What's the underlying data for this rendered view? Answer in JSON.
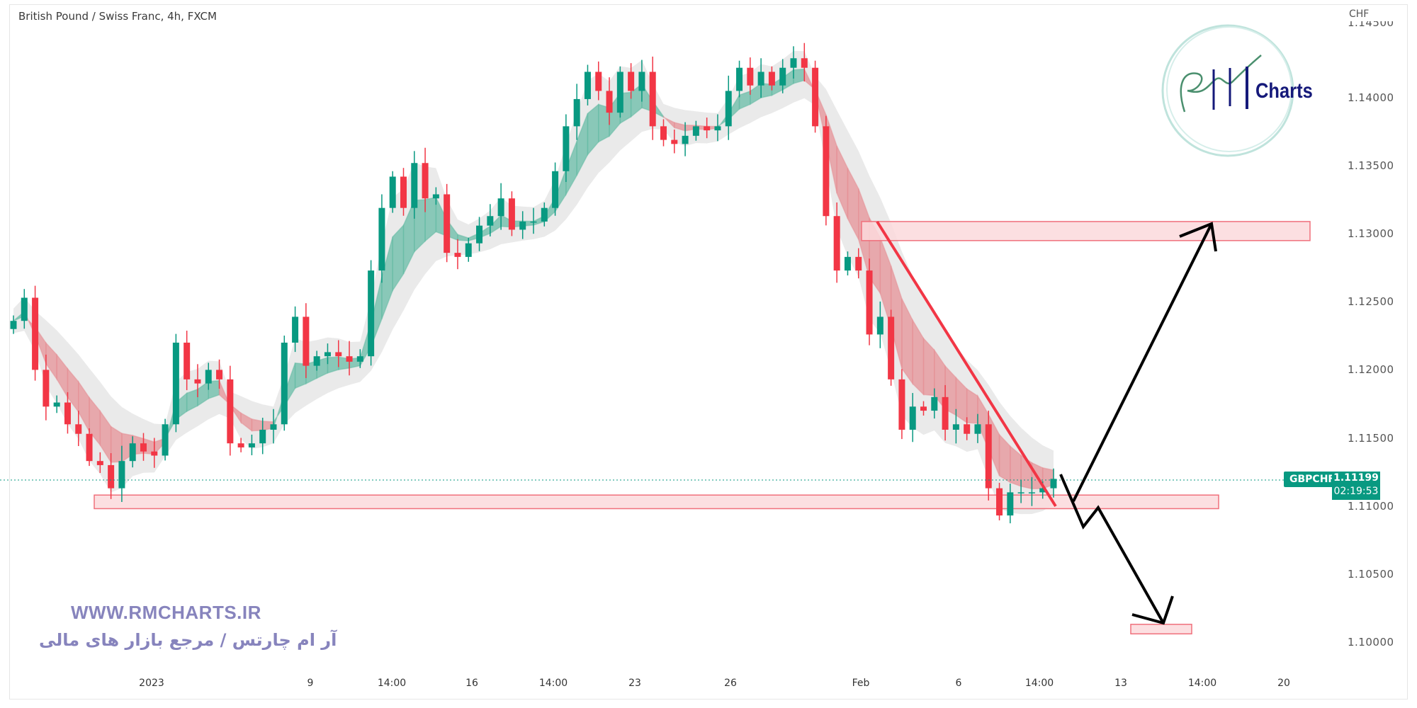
{
  "header": {
    "title": "British Pound / Swiss Franc, 4h, FXCM"
  },
  "price_axis": {
    "unit": "CHF",
    "ticks": [
      "1.14500",
      "1.14000",
      "1.13500",
      "1.13000",
      "1.12500",
      "1.12000",
      "1.11500",
      "1.11000",
      "1.10500",
      "1.10000"
    ]
  },
  "time_axis": {
    "ticks": [
      "2023",
      "9",
      "14:00",
      "16",
      "14:00",
      "23",
      "26",
      "Feb",
      "6",
      "14:00",
      "13",
      "14:00",
      "20"
    ]
  },
  "last_price": {
    "symbol": "GBPCHF",
    "value": "1.11199",
    "countdown": "02:19:53"
  },
  "watermark": {
    "url": "WWW.RMCHARTS.IR",
    "persian": "آر ام چارتس / مرجع بازار های مالی",
    "logo_text": "Charts"
  },
  "colors": {
    "up": "#089981",
    "down": "#f23645",
    "zone_fill": "#fcd9dc",
    "zone_border": "#f0707c",
    "trendline": "#f23645",
    "arrow": "#000000",
    "ribbon_up": "#5fb9a2",
    "ribbon_down": "#e58b92",
    "band": "#d9d9d9"
  },
  "chart_data": {
    "type": "candlestick",
    "symbol": "GBPCHF",
    "timeframe": "4h",
    "ylim": [
      1.0975,
      1.145
    ],
    "closes": [
      1.1236,
      1.1253,
      1.12,
      1.1173,
      1.1176,
      1.116,
      1.1153,
      1.1133,
      1.113,
      1.1113,
      1.1133,
      1.1146,
      1.114,
      1.1137,
      1.116,
      1.122,
      1.1193,
      1.119,
      1.12,
      1.1193,
      1.1146,
      1.1143,
      1.1146,
      1.1156,
      1.116,
      1.122,
      1.1239,
      1.1203,
      1.121,
      1.1213,
      1.121,
      1.1206,
      1.121,
      1.1273,
      1.1319,
      1.1342,
      1.1319,
      1.1352,
      1.1326,
      1.1329,
      1.1286,
      1.1283,
      1.1293,
      1.1306,
      1.1313,
      1.1326,
      1.1303,
      1.1309,
      1.1309,
      1.1319,
      1.1346,
      1.1379,
      1.1399,
      1.1419,
      1.1405,
      1.1389,
      1.1419,
      1.1405,
      1.1419,
      1.1379,
      1.1369,
      1.1366,
      1.1372,
      1.1379,
      1.1376,
      1.1379,
      1.1405,
      1.1422,
      1.1409,
      1.1419,
      1.1409,
      1.1422,
      1.1429,
      1.1422,
      1.1379,
      1.1313,
      1.1273,
      1.1283,
      1.1273,
      1.1226,
      1.1239,
      1.1193,
      1.1156,
      1.1173,
      1.117,
      1.118,
      1.1156,
      1.116,
      1.1153,
      1.116,
      1.1113,
      1.1093,
      1.111,
      1.111,
      1.111,
      1.1113,
      1.11199
    ],
    "zones": [
      {
        "price_top": 1.1108,
        "price_bottom": 1.1098
      },
      {
        "price_top": 1.1309,
        "price_bottom": 1.1295
      },
      {
        "price_top": 1.1013,
        "price_bottom": 1.1006
      }
    ],
    "last_price": 1.11199
  }
}
